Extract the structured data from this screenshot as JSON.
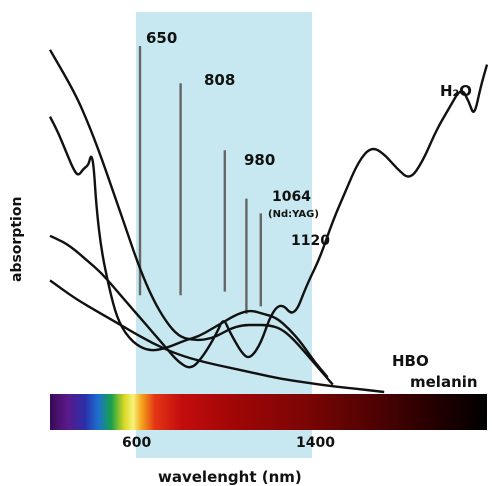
{
  "chart_data": {
    "type": "line",
    "title": "",
    "xlabel": "wavelenght (nm)",
    "ylabel": "absorption",
    "xlim": [
      300,
      2000
    ],
    "x_ticks": [
      600,
      1400
    ],
    "highlight_window_nm": [
      600,
      1400
    ],
    "colors": {
      "window": "#c7e8f0",
      "curve": "#111111",
      "laser_line": "#666666"
    },
    "laser_lines": [
      {
        "label": "650",
        "sublabel": "",
        "wavelength": 650,
        "top": 0.93,
        "bottom": 0.26
      },
      {
        "label": "808",
        "sublabel": "",
        "wavelength": 808,
        "top": 0.83,
        "bottom": 0.26
      },
      {
        "label": "980",
        "sublabel": "",
        "wavelength": 980,
        "top": 0.65,
        "bottom": 0.27
      },
      {
        "label": "1064",
        "sublabel": "(Nd:YAG)",
        "wavelength": 1064,
        "top": 0.52,
        "bottom": 0.21
      },
      {
        "label": "1120",
        "sublabel": "",
        "wavelength": 1120,
        "top": 0.48,
        "bottom": 0.23
      }
    ],
    "series": [
      {
        "name": "H₂O",
        "points": [
          [
            300,
            0.42
          ],
          [
            330,
            0.41
          ],
          [
            360,
            0.4
          ],
          [
            400,
            0.38
          ],
          [
            450,
            0.35
          ],
          [
            500,
            0.32
          ],
          [
            550,
            0.28
          ],
          [
            600,
            0.24
          ],
          [
            650,
            0.2
          ],
          [
            700,
            0.16
          ],
          [
            750,
            0.12
          ],
          [
            800,
            0.08
          ],
          [
            850,
            0.06
          ],
          [
            900,
            0.1
          ],
          [
            950,
            0.16
          ],
          [
            975,
            0.2
          ],
          [
            1000,
            0.16
          ],
          [
            1050,
            0.1
          ],
          [
            1080,
            0.09
          ],
          [
            1120,
            0.13
          ],
          [
            1160,
            0.21
          ],
          [
            1200,
            0.24
          ],
          [
            1250,
            0.2
          ],
          [
            1300,
            0.29
          ],
          [
            1350,
            0.36
          ],
          [
            1400,
            0.46
          ],
          [
            1450,
            0.54
          ],
          [
            1500,
            0.62
          ],
          [
            1550,
            0.66
          ],
          [
            1600,
            0.64
          ],
          [
            1650,
            0.6
          ],
          [
            1700,
            0.57
          ],
          [
            1750,
            0.62
          ],
          [
            1800,
            0.7
          ],
          [
            1850,
            0.76
          ],
          [
            1900,
            0.82
          ],
          [
            1930,
            0.78
          ],
          [
            1950,
            0.74
          ],
          [
            1975,
            0.82
          ],
          [
            2000,
            0.88
          ]
        ]
      },
      {
        "name": "HBO",
        "points": [
          [
            300,
            0.92
          ],
          [
            400,
            0.8
          ],
          [
            450,
            0.72
          ],
          [
            500,
            0.63
          ],
          [
            550,
            0.53
          ],
          [
            600,
            0.43
          ],
          [
            650,
            0.33
          ],
          [
            700,
            0.25
          ],
          [
            750,
            0.19
          ],
          [
            800,
            0.15
          ],
          [
            850,
            0.14
          ],
          [
            900,
            0.14
          ],
          [
            950,
            0.15
          ],
          [
            1000,
            0.17
          ],
          [
            1050,
            0.18
          ],
          [
            1100,
            0.18
          ],
          [
            1150,
            0.18
          ],
          [
            1200,
            0.17
          ],
          [
            1250,
            0.14
          ],
          [
            1300,
            0.1
          ],
          [
            1350,
            0.06
          ],
          [
            1400,
            0.02
          ]
        ]
      },
      {
        "name": "melanin",
        "points": [
          [
            300,
            0.3
          ],
          [
            400,
            0.25
          ],
          [
            500,
            0.21
          ],
          [
            600,
            0.17
          ],
          [
            700,
            0.13
          ],
          [
            800,
            0.1
          ],
          [
            900,
            0.08
          ],
          [
            1000,
            0.065
          ],
          [
            1100,
            0.05
          ],
          [
            1200,
            0.035
          ],
          [
            1300,
            0.025
          ],
          [
            1400,
            0.015
          ],
          [
            1500,
            0.008
          ],
          [
            1600,
            0.0
          ]
        ]
      },
      {
        "name": "",
        "points": [
          [
            300,
            0.74
          ],
          [
            330,
            0.7
          ],
          [
            360,
            0.65
          ],
          [
            390,
            0.6
          ],
          [
            410,
            0.58
          ],
          [
            430,
            0.6
          ],
          [
            450,
            0.61
          ],
          [
            460,
            0.64
          ],
          [
            470,
            0.61
          ],
          [
            480,
            0.5
          ],
          [
            500,
            0.38
          ],
          [
            530,
            0.28
          ],
          [
            560,
            0.2
          ],
          [
            600,
            0.15
          ],
          [
            650,
            0.12
          ],
          [
            700,
            0.11
          ],
          [
            760,
            0.12
          ],
          [
            830,
            0.14
          ],
          [
            880,
            0.15
          ],
          [
            930,
            0.17
          ],
          [
            980,
            0.19
          ],
          [
            1030,
            0.21
          ],
          [
            1080,
            0.22
          ],
          [
            1130,
            0.21
          ],
          [
            1180,
            0.2
          ],
          [
            1230,
            0.17
          ],
          [
            1280,
            0.13
          ],
          [
            1330,
            0.08
          ],
          [
            1380,
            0.04
          ]
        ]
      }
    ]
  },
  "labels": {
    "h2o": "H₂O",
    "hbo": "HBO",
    "melanin": "melanin",
    "tick_600": "600",
    "tick_1400": "1400",
    "xlabel": "wavelenght (nm)",
    "ylabel": "absorption"
  }
}
